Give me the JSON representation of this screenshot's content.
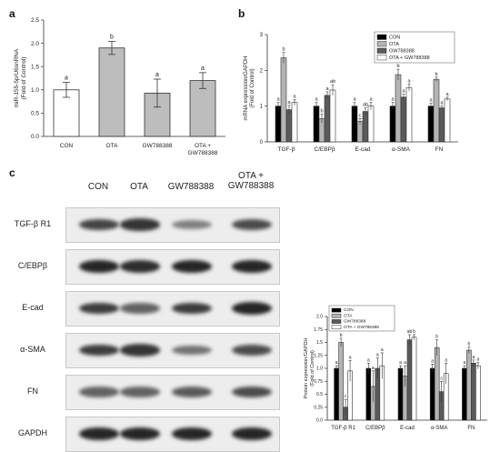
{
  "panels": {
    "a": "a",
    "b": "b",
    "c": "c"
  },
  "colors": {
    "con": "#000000",
    "ota": "#b4b4b4",
    "gw": "#5a5a5a",
    "combo": "#ffffff"
  },
  "chart_data": [
    {
      "id": "a",
      "type": "bar",
      "title": "",
      "xlabel": "",
      "ylabel_lines": [
        "miR-155-5p/U6snRNA",
        "(Fold of Control)"
      ],
      "ylim": [
        0,
        2.5
      ],
      "yticks": [
        "0.0",
        "0.5",
        "1.0",
        "1.5",
        "2.0",
        "2.5"
      ],
      "categories": [
        [
          "CON"
        ],
        [
          "OTA"
        ],
        [
          "GW788388"
        ],
        [
          "OTA +",
          "GW788388"
        ]
      ],
      "values": [
        1.0,
        1.9,
        0.93,
        1.2
      ],
      "errors": [
        0.16,
        0.14,
        0.3,
        0.17
      ],
      "letters": [
        "a",
        "b",
        "a",
        "a"
      ],
      "fills": [
        "#ffffff",
        "#bdbdbd",
        "#bdbdbd",
        "#bdbdbd"
      ]
    },
    {
      "id": "b",
      "type": "bar",
      "title": "",
      "xlabel": "",
      "ylabel_lines": [
        "mRNA expression/GAPDH",
        "(Fold of Control)"
      ],
      "ylim": [
        0,
        3
      ],
      "yticks": [
        "0",
        "1",
        "2",
        "3"
      ],
      "categories": [
        "TGF-β",
        "C/EBPβ",
        "E-cad",
        "α-SMA",
        "FN"
      ],
      "legend": {
        "placement": "top-right"
      },
      "series": [
        {
          "name": "CON",
          "values": [
            1.0,
            1.0,
            1.0,
            1.0,
            1.0
          ],
          "errors": [
            0.1,
            0.1,
            0.1,
            0.1,
            0.08
          ],
          "letters": [
            "a",
            "a",
            "a",
            "a",
            "a"
          ]
        },
        {
          "name": "OTA",
          "values": [
            2.35,
            0.65,
            0.57,
            1.88,
            1.75
          ],
          "errors": [
            0.15,
            0.12,
            0.08,
            0.15,
            0.06
          ],
          "letters": [
            "b",
            "b",
            "c",
            "b",
            "b"
          ]
        },
        {
          "name": "GW788388",
          "values": [
            0.9,
            1.3,
            0.85,
            1.25,
            0.95
          ],
          "errors": [
            0.12,
            0.1,
            0.1,
            0.08,
            0.05
          ],
          "letters": [
            "a",
            "a",
            "ab",
            "a",
            "a"
          ]
        },
        {
          "name": "OTA + GW788388",
          "values": [
            1.1,
            1.45,
            1.0,
            1.52,
            1.2
          ],
          "errors": [
            0.08,
            0.15,
            0.1,
            0.1,
            0.05
          ],
          "letters": [
            "a",
            "ab",
            "a",
            "a",
            "a"
          ]
        }
      ]
    },
    {
      "id": "c-quant",
      "type": "bar",
      "title": "",
      "xlabel": "",
      "ylabel_lines": [
        "Protein expression/GAPDH",
        "(Fold of Control)"
      ],
      "ylim": [
        0,
        2.0
      ],
      "yticks": [
        "0.0",
        "0.25",
        "0.5",
        "0.75",
        "1.0",
        "1.25",
        "1.5",
        "1.75",
        "2.0"
      ],
      "categories": [
        "TGF-β R1",
        "C/EBPβ",
        "E-cad",
        "α-SMA",
        "FN"
      ],
      "legend": {
        "placement": "top-left"
      },
      "series": [
        {
          "name": "CON",
          "values": [
            1.0,
            1.0,
            1.0,
            1.0,
            1.0
          ],
          "errors": [
            0.05,
            0.1,
            0.05,
            0.08,
            0.05
          ],
          "letters": [
            "a",
            "a",
            "a",
            "a",
            "a"
          ]
        },
        {
          "name": "OTA",
          "values": [
            1.5,
            0.65,
            0.85,
            1.4,
            1.35
          ],
          "errors": [
            0.08,
            0.3,
            0.2,
            0.15,
            0.06
          ],
          "letters": [
            "b",
            "a",
            "a",
            "b",
            "b"
          ]
        },
        {
          "name": "GW788388",
          "values": [
            0.25,
            1.0,
            1.55,
            0.55,
            1.1
          ],
          "errors": [
            0.15,
            0.2,
            0.1,
            0.2,
            0.06
          ],
          "letters": [
            "c",
            "a",
            "ab",
            "c",
            "a"
          ]
        },
        {
          "name": "OTA + GW788388",
          "values": [
            0.95,
            1.05,
            1.6,
            0.9,
            1.05
          ],
          "errors": [
            0.2,
            0.25,
            0.05,
            0.2,
            0.06
          ],
          "letters": [
            "a",
            "a",
            "b",
            "a",
            "a"
          ]
        }
      ]
    }
  ],
  "blot": {
    "lanes": [
      [
        "CON"
      ],
      [
        "OTA"
      ],
      [
        "GW788388"
      ],
      [
        "OTA +",
        "GW788388"
      ]
    ],
    "rows": [
      {
        "label": "TGF-β R1",
        "intensity": [
          0.75,
          0.85,
          0.35,
          0.7
        ]
      },
      {
        "label": "C/EBPβ",
        "intensity": [
          0.95,
          0.9,
          0.95,
          0.95
        ]
      },
      {
        "label": "E-cad",
        "intensity": [
          0.8,
          0.55,
          0.8,
          0.95
        ]
      },
      {
        "label": "α-SMA",
        "intensity": [
          0.8,
          0.85,
          0.45,
          0.7
        ]
      },
      {
        "label": "FN",
        "intensity": [
          0.55,
          0.55,
          0.6,
          0.7
        ]
      },
      {
        "label": "GAPDH",
        "intensity": [
          0.95,
          0.95,
          0.95,
          0.95
        ]
      }
    ]
  }
}
